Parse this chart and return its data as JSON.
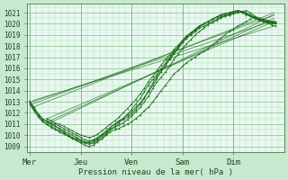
{
  "xlabel": "Pression niveau de la mer( hPa )",
  "bg_color": "#c8e8d0",
  "plot_bg_color": "#e8f8f0",
  "grid_major_color": "#88bb88",
  "grid_minor_color": "#aaddaa",
  "line_color": "#1a6b1a",
  "ylim": [
    1008.5,
    1021.8
  ],
  "yticks": [
    1009,
    1010,
    1011,
    1012,
    1013,
    1014,
    1015,
    1016,
    1017,
    1018,
    1019,
    1020,
    1021
  ],
  "days": [
    "Mer",
    "Jeu",
    "Ven",
    "Sam",
    "Dim"
  ],
  "day_x": [
    0.0,
    1.0,
    2.0,
    3.0,
    4.0
  ],
  "xlim": [
    -0.05,
    5.0
  ],
  "x_total_days": 5.0,
  "straight_lines": [
    {
      "x0": 0.05,
      "y0": 1013.0,
      "x1": 4.8,
      "y1": 1020.3
    },
    {
      "x0": 0.05,
      "y0": 1012.8,
      "x1": 4.8,
      "y1": 1020.8
    },
    {
      "x0": 0.05,
      "y0": 1013.1,
      "x1": 4.8,
      "y1": 1019.8
    },
    {
      "x0": 0.05,
      "y0": 1012.5,
      "x1": 4.8,
      "y1": 1021.0
    },
    {
      "x0": 0.35,
      "y0": 1011.2,
      "x1": 4.8,
      "y1": 1020.5
    },
    {
      "x0": 0.35,
      "y0": 1011.5,
      "x1": 4.8,
      "y1": 1020.2
    },
    {
      "x0": 0.35,
      "y0": 1011.0,
      "x1": 4.8,
      "y1": 1020.8
    }
  ],
  "wiggly_lines": [
    {
      "x": [
        0.0,
        0.08,
        0.17,
        0.25,
        0.33,
        0.42,
        0.5,
        0.58,
        0.67,
        0.75,
        0.83,
        0.92,
        1.0,
        1.08,
        1.17,
        1.25,
        1.33,
        1.42,
        1.5,
        1.58,
        1.67,
        1.75,
        1.83,
        1.92,
        2.0,
        2.08,
        2.17,
        2.25,
        2.33,
        2.42,
        2.5,
        2.58,
        2.67,
        2.75,
        2.83,
        2.92,
        3.0,
        3.08,
        3.17,
        3.25,
        3.33,
        3.42,
        3.5,
        3.58,
        3.67,
        3.75,
        3.83,
        3.92,
        4.0,
        4.08,
        4.17,
        4.25,
        4.33,
        4.42,
        4.5,
        4.58,
        4.67,
        4.75,
        4.83
      ],
      "y": [
        1012.9,
        1012.3,
        1011.8,
        1011.4,
        1011.2,
        1011.0,
        1010.8,
        1010.6,
        1010.3,
        1010.0,
        1009.8,
        1009.6,
        1009.4,
        1009.3,
        1009.2,
        1009.3,
        1009.5,
        1009.7,
        1010.0,
        1010.3,
        1010.5,
        1010.6,
        1010.8,
        1011.0,
        1011.2,
        1011.5,
        1011.8,
        1012.2,
        1012.5,
        1013.0,
        1013.5,
        1014.0,
        1014.5,
        1015.0,
        1015.5,
        1015.8,
        1016.2,
        1016.5,
        1016.8,
        1017.0,
        1017.3,
        1017.5,
        1017.8,
        1018.1,
        1018.4,
        1018.7,
        1019.0,
        1019.3,
        1019.5,
        1019.8,
        1020.0,
        1020.2,
        1020.4,
        1020.6,
        1020.5,
        1020.3,
        1020.1,
        1019.9,
        1019.8
      ]
    },
    {
      "x": [
        0.0,
        0.08,
        0.17,
        0.25,
        0.33,
        0.42,
        0.5,
        0.58,
        0.67,
        0.75,
        0.83,
        0.92,
        1.0,
        1.08,
        1.17,
        1.25,
        1.33,
        1.42,
        1.5,
        1.58,
        1.67,
        1.75,
        1.83,
        1.92,
        2.0,
        2.08,
        2.17,
        2.25,
        2.33,
        2.42,
        2.5,
        2.58,
        2.67,
        2.75,
        2.83,
        2.92,
        3.0,
        3.08,
        3.17,
        3.25,
        3.33,
        3.42,
        3.5,
        3.58,
        3.67,
        3.75,
        3.83,
        3.92,
        4.0,
        4.08,
        4.17,
        4.25,
        4.33,
        4.42,
        4.5,
        4.58,
        4.67,
        4.75,
        4.83
      ],
      "y": [
        1013.0,
        1012.4,
        1011.8,
        1011.3,
        1011.0,
        1010.7,
        1010.5,
        1010.3,
        1010.1,
        1009.9,
        1009.7,
        1009.5,
        1009.3,
        1009.1,
        1009.0,
        1009.1,
        1009.4,
        1009.7,
        1010.1,
        1010.5,
        1010.7,
        1010.9,
        1011.1,
        1011.4,
        1011.7,
        1012.1,
        1012.5,
        1013.0,
        1013.5,
        1014.2,
        1014.8,
        1015.2,
        1015.7,
        1016.2,
        1016.8,
        1017.3,
        1017.8,
        1018.2,
        1018.6,
        1019.0,
        1019.3,
        1019.6,
        1019.9,
        1020.1,
        1020.3,
        1020.5,
        1020.7,
        1020.8,
        1020.9,
        1021.0,
        1021.1,
        1021.0,
        1020.8,
        1020.5,
        1020.3,
        1020.2,
        1020.1,
        1020.0,
        1020.0
      ]
    },
    {
      "x": [
        0.0,
        0.08,
        0.17,
        0.25,
        0.33,
        0.42,
        0.5,
        0.58,
        0.67,
        0.75,
        0.83,
        0.92,
        1.0,
        1.08,
        1.17,
        1.25,
        1.33,
        1.42,
        1.5,
        1.58,
        1.67,
        1.75,
        1.83,
        1.92,
        2.0,
        2.08,
        2.17,
        2.25,
        2.33,
        2.42,
        2.5,
        2.58,
        2.67,
        2.75,
        2.83,
        2.92,
        3.0,
        3.08,
        3.17,
        3.25,
        3.33,
        3.42,
        3.5,
        3.58,
        3.67,
        3.75,
        3.83,
        3.92,
        4.0,
        4.08,
        4.17,
        4.25,
        4.33,
        4.42,
        4.5,
        4.58,
        4.67,
        4.75,
        4.83
      ],
      "y": [
        1012.8,
        1012.2,
        1011.6,
        1011.2,
        1011.0,
        1010.8,
        1010.6,
        1010.4,
        1010.2,
        1010.0,
        1009.8,
        1009.7,
        1009.5,
        1009.4,
        1009.4,
        1009.5,
        1009.7,
        1010.0,
        1010.3,
        1010.7,
        1011.0,
        1011.2,
        1011.4,
        1011.6,
        1011.9,
        1012.3,
        1012.8,
        1013.3,
        1014.0,
        1014.7,
        1015.3,
        1015.8,
        1016.3,
        1016.8,
        1017.3,
        1017.8,
        1018.3,
        1018.7,
        1019.0,
        1019.3,
        1019.6,
        1019.8,
        1020.0,
        1020.2,
        1020.4,
        1020.6,
        1020.7,
        1020.8,
        1020.9,
        1021.0,
        1021.1,
        1021.2,
        1021.0,
        1020.7,
        1020.5,
        1020.4,
        1020.3,
        1020.2,
        1020.1
      ]
    },
    {
      "x": [
        0.0,
        0.08,
        0.17,
        0.25,
        0.33,
        0.42,
        0.5,
        0.58,
        0.67,
        0.75,
        0.83,
        0.92,
        1.0,
        1.08,
        1.17,
        1.25,
        1.33,
        1.42,
        1.5,
        1.58,
        1.67,
        1.75,
        1.83,
        1.92,
        2.0,
        2.08,
        2.17,
        2.25,
        2.33,
        2.42,
        2.5,
        2.58,
        2.67,
        2.75,
        2.83,
        2.92,
        3.0,
        3.08,
        3.17,
        3.25,
        3.33,
        3.42,
        3.5,
        3.58,
        3.67,
        3.75,
        3.83,
        3.92,
        4.0,
        4.08,
        4.17,
        4.25,
        4.33,
        4.42,
        4.5,
        4.58,
        4.67,
        4.75,
        4.83
      ],
      "y": [
        1013.1,
        1012.5,
        1011.9,
        1011.5,
        1011.3,
        1011.1,
        1011.0,
        1010.8,
        1010.6,
        1010.4,
        1010.2,
        1010.0,
        1009.8,
        1009.6,
        1009.5,
        1009.6,
        1009.8,
        1010.1,
        1010.4,
        1010.7,
        1011.0,
        1011.3,
        1011.5,
        1011.8,
        1012.1,
        1012.5,
        1012.9,
        1013.4,
        1013.9,
        1014.5,
        1015.1,
        1015.7,
        1016.3,
        1016.9,
        1017.4,
        1017.9,
        1018.4,
        1018.8,
        1019.1,
        1019.4,
        1019.7,
        1020.0,
        1020.2,
        1020.4,
        1020.6,
        1020.8,
        1020.9,
        1021.0,
        1021.1,
        1021.2,
        1021.1,
        1020.9,
        1020.7,
        1020.5,
        1020.4,
        1020.3,
        1020.2,
        1020.1,
        1020.0
      ]
    },
    {
      "x": [
        0.33,
        0.42,
        0.5,
        0.58,
        0.67,
        0.75,
        0.83,
        0.92,
        1.0,
        1.08,
        1.17,
        1.25,
        1.33,
        1.42,
        1.5,
        1.58,
        1.67,
        1.75,
        1.83,
        1.92,
        2.0,
        2.08,
        2.17,
        2.25,
        2.33,
        2.42,
        2.5,
        2.58,
        2.67,
        2.75,
        2.83,
        2.92,
        3.0,
        3.08,
        3.17,
        3.25,
        3.33,
        3.42,
        3.5,
        3.58,
        3.67,
        3.75,
        3.83,
        3.92,
        4.0,
        4.08,
        4.17,
        4.25,
        4.33,
        4.42,
        4.5,
        4.58,
        4.67,
        4.75,
        4.83
      ],
      "y": [
        1011.5,
        1011.3,
        1011.1,
        1011.0,
        1010.8,
        1010.6,
        1010.4,
        1010.2,
        1010.0,
        1009.9,
        1009.8,
        1009.9,
        1010.1,
        1010.4,
        1010.7,
        1011.0,
        1011.3,
        1011.6,
        1012.0,
        1012.4,
        1012.8,
        1013.2,
        1013.7,
        1014.2,
        1014.8,
        1015.3,
        1015.8,
        1016.3,
        1016.8,
        1017.2,
        1017.7,
        1018.1,
        1018.5,
        1018.9,
        1019.2,
        1019.5,
        1019.8,
        1020.0,
        1020.2,
        1020.4,
        1020.6,
        1020.7,
        1020.8,
        1020.9,
        1021.0,
        1021.1,
        1021.0,
        1020.8,
        1020.7,
        1020.5,
        1020.4,
        1020.3,
        1020.2,
        1020.1,
        1020.1
      ]
    },
    {
      "x": [
        0.33,
        0.42,
        0.5,
        0.58,
        0.67,
        0.75,
        0.83,
        0.92,
        1.0,
        1.08,
        1.17,
        1.25,
        1.33,
        1.42,
        1.5,
        1.58,
        1.67,
        1.75,
        1.83,
        1.92,
        2.0,
        2.08,
        2.17,
        2.25,
        2.33,
        2.42,
        2.5,
        2.58,
        2.67,
        2.75,
        2.83,
        2.92,
        3.0,
        3.08,
        3.17,
        3.25,
        3.33,
        3.42,
        3.5,
        3.58,
        3.67,
        3.75,
        3.83,
        3.92,
        4.0,
        4.08,
        4.17,
        4.25,
        4.33,
        4.42,
        4.5,
        4.58,
        4.67,
        4.75,
        4.83
      ],
      "y": [
        1011.2,
        1011.0,
        1010.8,
        1010.6,
        1010.4,
        1010.2,
        1010.0,
        1009.8,
        1009.6,
        1009.4,
        1009.3,
        1009.4,
        1009.6,
        1009.9,
        1010.2,
        1010.5,
        1010.8,
        1011.1,
        1011.5,
        1011.9,
        1012.3,
        1012.8,
        1013.3,
        1013.9,
        1014.5,
        1015.0,
        1015.5,
        1016.0,
        1016.5,
        1017.0,
        1017.5,
        1018.0,
        1018.5,
        1018.9,
        1019.2,
        1019.5,
        1019.8,
        1020.0,
        1020.2,
        1020.4,
        1020.6,
        1020.8,
        1020.9,
        1021.0,
        1021.1,
        1021.2,
        1021.1,
        1020.9,
        1020.8,
        1020.6,
        1020.5,
        1020.4,
        1020.3,
        1020.2,
        1020.2
      ]
    }
  ]
}
